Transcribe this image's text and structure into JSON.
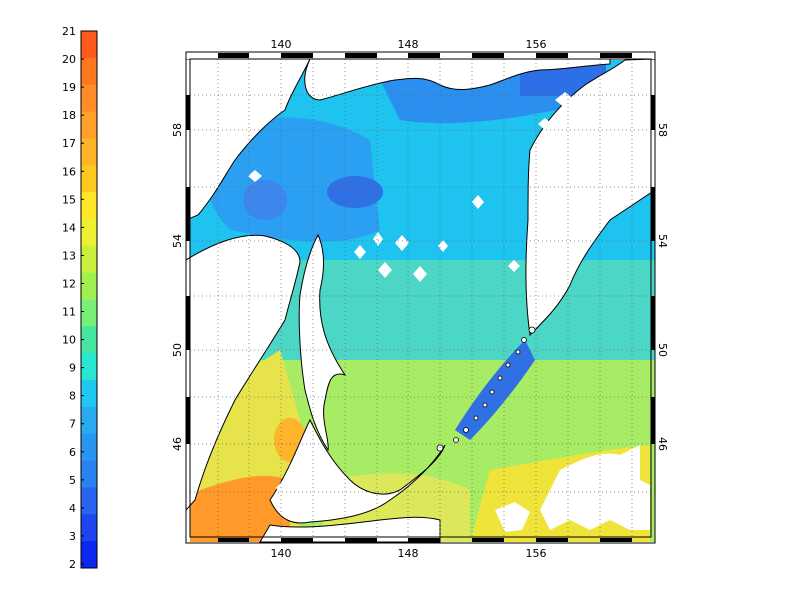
{
  "colorbar": {
    "labels": [
      "21",
      "20",
      "19",
      "18",
      "17",
      "16",
      "15",
      "14",
      "13",
      "12",
      "11",
      "10",
      "9",
      "8",
      "7",
      "6",
      "5",
      "4",
      "3",
      "2"
    ],
    "colors": [
      "#ff5a1e",
      "#ff781e",
      "#ff8c28",
      "#ffa028",
      "#ffb428",
      "#ffc81e",
      "#ffe628",
      "#f0f032",
      "#c8f03c",
      "#a0f050",
      "#78f078",
      "#46e6a0",
      "#28e6d2",
      "#1ec8f0",
      "#28aaf0",
      "#2896f0",
      "#2882f0",
      "#2864f0",
      "#1e46f0",
      "#0a28f0"
    ]
  },
  "map": {
    "top_labels": [
      "140",
      "148",
      "156"
    ],
    "bottom_labels": [
      "140",
      "148",
      "156"
    ],
    "left_labels": [
      "58",
      "54",
      "50",
      "46"
    ],
    "right_labels": [
      "58",
      "54",
      "50",
      "46"
    ],
    "ocean_colors": {
      "deep_blue": "#2d6fe6",
      "blue": "#2f9ef2",
      "cyan": "#1cc8f0",
      "green": "#7ae892",
      "yellow": "#e8e040",
      "orange": "#ff8a28"
    }
  }
}
